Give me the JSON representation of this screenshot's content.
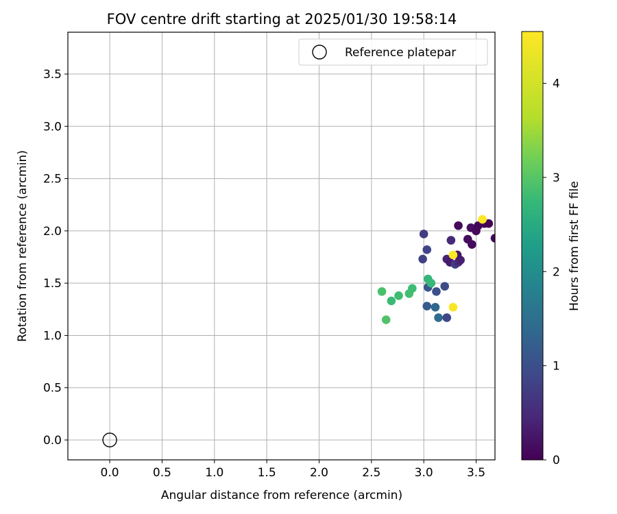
{
  "chart_data": {
    "type": "scatter",
    "title": "FOV centre drift starting at 2025/01/30 19:58:14",
    "xlabel": "Angular distance from reference (arcmin)",
    "ylabel": "Rotation from reference (arcmin)",
    "xlim": [
      -0.4,
      3.68
    ],
    "ylim": [
      -0.19,
      3.9
    ],
    "xticks": [
      "0.0",
      "0.5",
      "1.0",
      "1.5",
      "2.0",
      "2.5",
      "3.0",
      "3.5"
    ],
    "xtick_values": [
      0,
      0.5,
      1.0,
      1.5,
      2.0,
      2.5,
      3.0,
      3.5
    ],
    "yticks": [
      "0.0",
      "0.5",
      "1.0",
      "1.5",
      "2.0",
      "2.5",
      "3.0",
      "3.5"
    ],
    "ytick_values": [
      0,
      0.5,
      1.0,
      1.5,
      2.0,
      2.5,
      3.0,
      3.5
    ],
    "grid": true,
    "legend": {
      "placement": "top-right",
      "entries": [
        {
          "label": "Reference platepar",
          "marker": "open-circle",
          "color": "#000000"
        }
      ]
    },
    "reference_point": {
      "x": 0.0,
      "y": 0.0
    },
    "colorbar": {
      "label": "Hours from first FF file",
      "min": 0,
      "max": 4.55,
      "ticks": [
        "0",
        "1",
        "2",
        "3",
        "4"
      ],
      "tick_values": [
        0,
        1,
        2,
        3,
        4
      ],
      "colormap": "viridis"
    },
    "points": [
      {
        "x": 3.33,
        "y": 2.05,
        "hours": 0.1
      },
      {
        "x": 3.45,
        "y": 2.03,
        "hours": 0.15
      },
      {
        "x": 3.5,
        "y": 2.0,
        "hours": 0.08
      },
      {
        "x": 3.52,
        "y": 2.05,
        "hours": 0.05
      },
      {
        "x": 3.58,
        "y": 2.07,
        "hours": 0.04
      },
      {
        "x": 3.62,
        "y": 2.07,
        "hours": 0.02
      },
      {
        "x": 3.42,
        "y": 1.92,
        "hours": 0.12
      },
      {
        "x": 3.46,
        "y": 1.87,
        "hours": 0.1
      },
      {
        "x": 3.68,
        "y": 1.93,
        "hours": 0.06
      },
      {
        "x": 3.26,
        "y": 1.91,
        "hours": 0.45
      },
      {
        "x": 3.0,
        "y": 1.97,
        "hours": 0.75
      },
      {
        "x": 3.03,
        "y": 1.82,
        "hours": 0.85
      },
      {
        "x": 2.99,
        "y": 1.73,
        "hours": 0.8
      },
      {
        "x": 3.22,
        "y": 1.73,
        "hours": 0.4
      },
      {
        "x": 3.25,
        "y": 1.7,
        "hours": 0.3
      },
      {
        "x": 3.3,
        "y": 1.68,
        "hours": 0.75
      },
      {
        "x": 3.33,
        "y": 1.7,
        "hours": 0.5
      },
      {
        "x": 3.35,
        "y": 1.72,
        "hours": 0.35
      },
      {
        "x": 3.32,
        "y": 1.77,
        "hours": 0.25
      },
      {
        "x": 3.28,
        "y": 1.77,
        "hours": 4.52
      },
      {
        "x": 3.56,
        "y": 2.11,
        "hours": 4.55
      },
      {
        "x": 3.28,
        "y": 1.27,
        "hours": 4.48
      },
      {
        "x": 3.2,
        "y": 1.47,
        "hours": 0.95
      },
      {
        "x": 3.12,
        "y": 1.42,
        "hours": 1.0
      },
      {
        "x": 3.04,
        "y": 1.46,
        "hours": 1.1
      },
      {
        "x": 3.03,
        "y": 1.28,
        "hours": 1.15
      },
      {
        "x": 3.11,
        "y": 1.27,
        "hours": 1.35
      },
      {
        "x": 3.14,
        "y": 1.17,
        "hours": 1.45
      },
      {
        "x": 3.22,
        "y": 1.17,
        "hours": 0.9
      },
      {
        "x": 3.04,
        "y": 1.54,
        "hours": 2.7
      },
      {
        "x": 3.07,
        "y": 1.5,
        "hours": 2.75
      },
      {
        "x": 2.89,
        "y": 1.45,
        "hours": 2.8
      },
      {
        "x": 2.86,
        "y": 1.4,
        "hours": 2.85
      },
      {
        "x": 2.76,
        "y": 1.38,
        "hours": 2.82
      },
      {
        "x": 2.69,
        "y": 1.33,
        "hours": 2.78
      },
      {
        "x": 2.6,
        "y": 1.42,
        "hours": 2.9
      },
      {
        "x": 2.64,
        "y": 1.15,
        "hours": 2.95
      }
    ]
  }
}
